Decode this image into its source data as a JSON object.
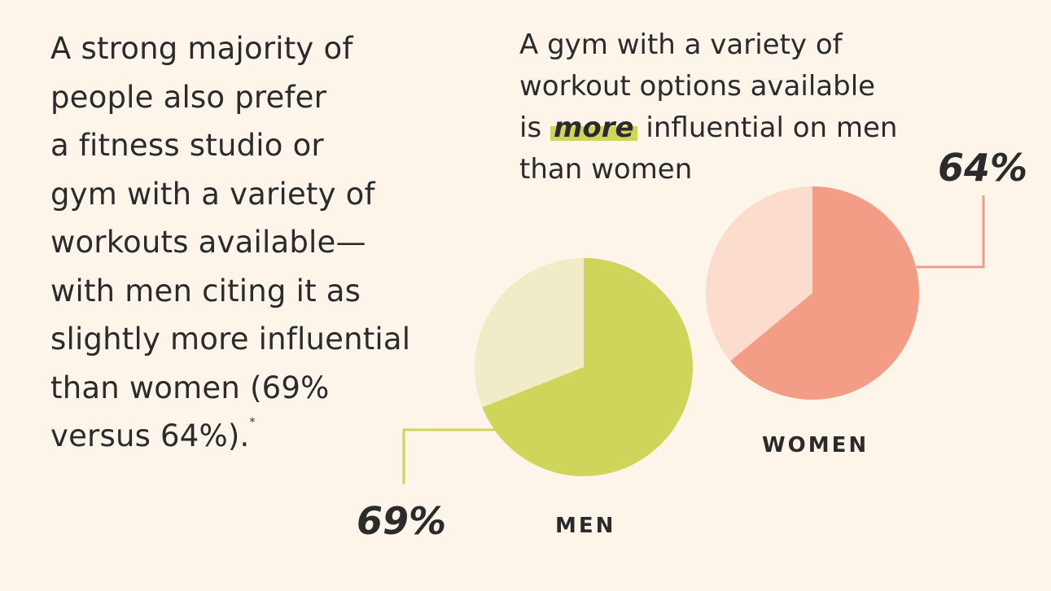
{
  "left_text": {
    "lines": [
      "A strong majority of",
      "people also prefer",
      "a fitness studio or",
      "gym with a variety of",
      "workouts available—",
      "with men citing it as",
      "slightly more influential",
      "than women (69%",
      "versus 64%)."
    ],
    "footnote_mark": "*"
  },
  "right_text": {
    "line1": "A gym with a variety of",
    "line2": "workout options available",
    "line3_pre": "is ",
    "line3_highlight": "more",
    "line3_post": " influential on men",
    "line4": "than women"
  },
  "colors": {
    "background": "#fdf5ea",
    "men_main": "#cfd45a",
    "men_rest": "#f1ecc8",
    "women_main": "#f49d86",
    "women_rest": "#fcdccd",
    "highlight": "#cfd45a"
  },
  "chart_data": {
    "type": "pie",
    "charts": [
      {
        "category": "MEN",
        "value": 69,
        "label": "69%",
        "color": "#cfd45a",
        "rest_color": "#f1ecc8"
      },
      {
        "category": "WOMEN",
        "value": 64,
        "label": "64%",
        "color": "#f49d86",
        "rest_color": "#fcdccd"
      }
    ]
  }
}
